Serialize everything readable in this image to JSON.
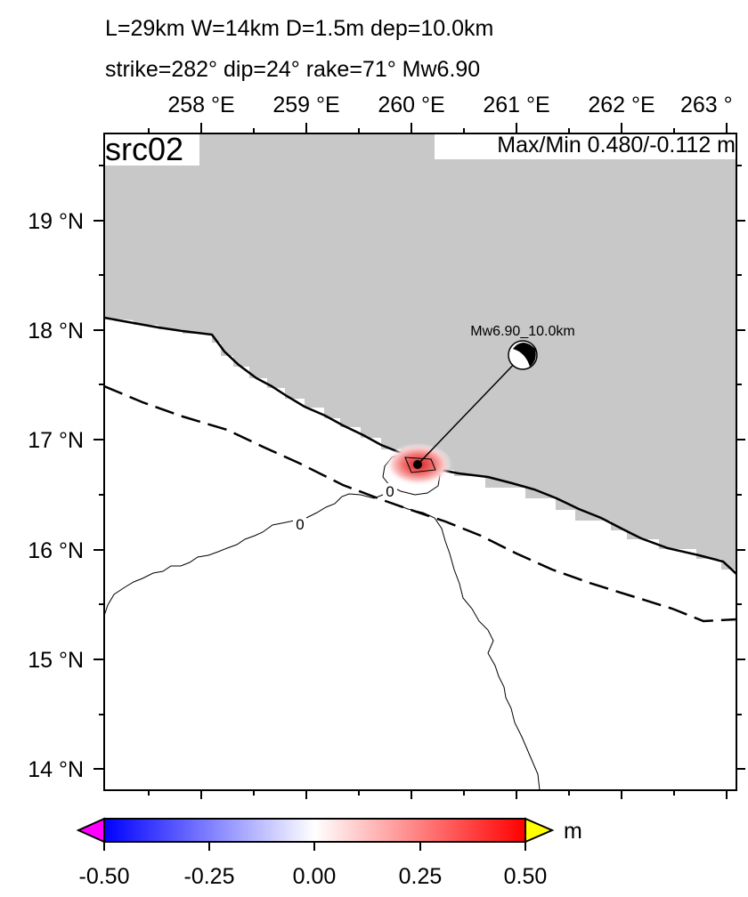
{
  "header": {
    "line1": "L=29km W=14km D=1.5m dep=10.0km",
    "line2": "strike=282° dip=24° rake=71° Mw6.90"
  },
  "map": {
    "source_label": "src02",
    "maxmin_label": "Max/Min 0.480/-0.112 m",
    "lon_ticks": [
      "258 °E",
      "259 °E",
      "260 °E",
      "261 °E",
      "262 °E",
      "263 °"
    ],
    "lat_ticks": [
      "19 °N",
      "18 °N",
      "17 °N",
      "16 °N",
      "15 °N",
      "14 °N"
    ],
    "contour_labels": [
      "0",
      "0"
    ],
    "beachball_label": "Mw6.90_10.0km",
    "land_color": "#c8c8c8",
    "ocean_color": "#ffffff"
  },
  "colorbar": {
    "unit": "m",
    "ticks": [
      "-0.50",
      "-0.25",
      "0.00",
      "0.25",
      "0.50"
    ],
    "colors": {
      "low_overflow": "#ff00ff",
      "low": "#0000ff",
      "mid": "#ffffff",
      "high": "#ff0000",
      "high_overflow": "#ffff00"
    }
  }
}
